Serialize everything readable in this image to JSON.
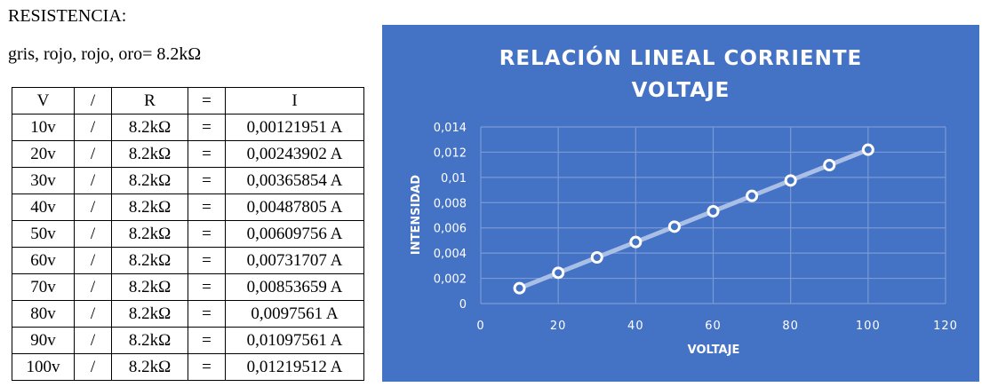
{
  "document": {
    "heading": "RESISTENCIA:",
    "subheading": "gris, rojo, rojo, oro= 8.2kΩ"
  },
  "table": {
    "headers": [
      "V",
      "/",
      "R",
      "=",
      "I"
    ],
    "rows": [
      [
        "10v",
        "/",
        "8.2kΩ",
        "=",
        "0,00121951 A"
      ],
      [
        "20v",
        "/",
        "8.2kΩ",
        "=",
        "0,00243902 A"
      ],
      [
        "30v",
        "/",
        "8.2kΩ",
        "=",
        "0,00365854 A"
      ],
      [
        "40v",
        "/",
        "8.2kΩ",
        "=",
        "0,00487805 A"
      ],
      [
        "50v",
        "/",
        "8.2kΩ",
        "=",
        "0,00609756 A"
      ],
      [
        "60v",
        "/",
        "8.2kΩ",
        "=",
        "0,00731707 A"
      ],
      [
        "70v",
        "/",
        "8.2kΩ",
        "=",
        "0,00853659 A"
      ],
      [
        "80v",
        "/",
        "8.2kΩ",
        "=",
        "0,0097561 A"
      ],
      [
        "90v",
        "/",
        "8.2kΩ",
        "=",
        "0,01097561 A"
      ],
      [
        "100v",
        "/",
        "8.2kΩ",
        "=",
        "0,01219512 A"
      ]
    ]
  },
  "colors": {
    "panel_bg": "#4472c4",
    "gridline": "#7a9ad6",
    "series_line": "#a9bfe6",
    "marker_fill": "#4472c4",
    "marker_stroke": "#ffffff",
    "text": "#ffffff"
  },
  "chart_data": {
    "type": "scatter",
    "title": "RELACIÓN LINEAL CORRIENTE VOLTAJE",
    "title_lines": [
      "RELACIÓN LINEAL CORRIENTE",
      "VOLTAJE"
    ],
    "xlabel": "VOLTAJE",
    "ylabel": "INTENSIDAD",
    "x": [
      10,
      20,
      30,
      40,
      50,
      60,
      70,
      80,
      90,
      100
    ],
    "series": [
      {
        "name": "I",
        "values": [
          0.00121951,
          0.00243902,
          0.00365854,
          0.00487805,
          0.00609756,
          0.00731707,
          0.00853659,
          0.0097561,
          0.01097561,
          0.01219512
        ]
      }
    ],
    "xlim": [
      0,
      120
    ],
    "ylim": [
      0,
      0.014
    ],
    "x_ticks": [
      "0",
      "20",
      "40",
      "60",
      "80",
      "100",
      "120"
    ],
    "y_ticks": [
      "0",
      "0,002",
      "0,004",
      "0,006",
      "0,008",
      "0,01",
      "0,012",
      "0,014"
    ],
    "grid": true,
    "legend": "none",
    "markers": "hollow circles connected by line"
  }
}
